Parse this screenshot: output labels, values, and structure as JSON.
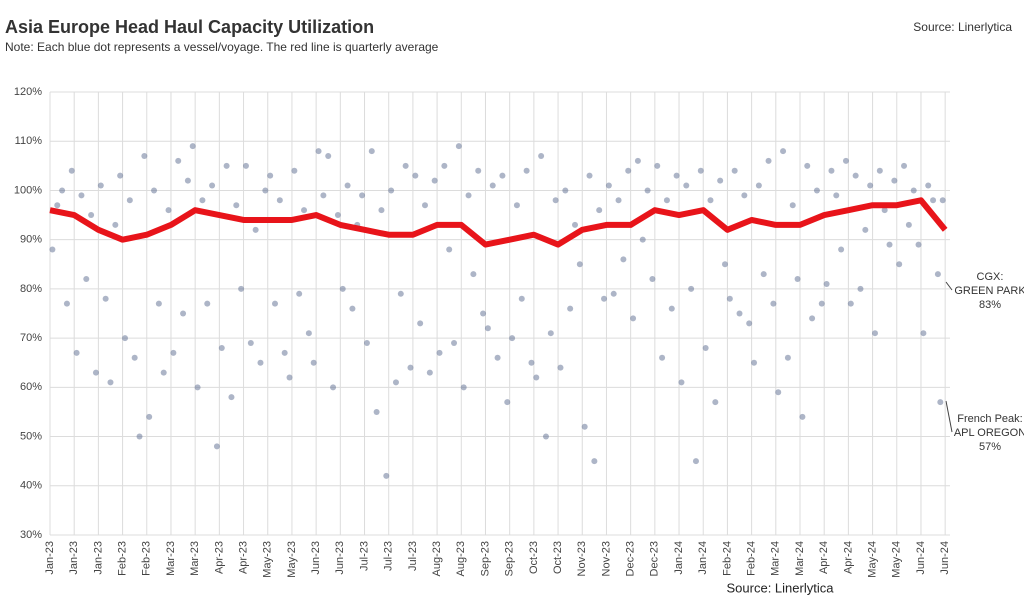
{
  "chart_data": {
    "type": "scatter",
    "title": "Asia Europe Head Haul Capacity Utilization",
    "subtitle": "Note: Each blue dot represents a vessel/voyage. The red line is quarterly average",
    "source_top": "Source: Linerlytica",
    "source_bottom": "Source: Linerlytica",
    "xlim": [
      0,
      37.2
    ],
    "xticks": [
      {
        "value": 0,
        "label": "Jan-23"
      },
      {
        "value": 1,
        "label": "Jan-23"
      },
      {
        "value": 2,
        "label": "Jan-23"
      },
      {
        "value": 3,
        "label": "Feb-23"
      },
      {
        "value": 4,
        "label": "Feb-23"
      },
      {
        "value": 5,
        "label": "Mar-23"
      },
      {
        "value": 6,
        "label": "Mar-23"
      },
      {
        "value": 7,
        "label": "Apr-23"
      },
      {
        "value": 8,
        "label": "Apr-23"
      },
      {
        "value": 9,
        "label": "May-23"
      },
      {
        "value": 10,
        "label": "May-23"
      },
      {
        "value": 11,
        "label": "Jun-23"
      },
      {
        "value": 12,
        "label": "Jun-23"
      },
      {
        "value": 13,
        "label": "Jul-23"
      },
      {
        "value": 14,
        "label": "Jul-23"
      },
      {
        "value": 15,
        "label": "Jul-23"
      },
      {
        "value": 16,
        "label": "Aug-23"
      },
      {
        "value": 17,
        "label": "Aug-23"
      },
      {
        "value": 18,
        "label": "Sep-23"
      },
      {
        "value": 19,
        "label": "Sep-23"
      },
      {
        "value": 20,
        "label": "Oct-23"
      },
      {
        "value": 21,
        "label": "Oct-23"
      },
      {
        "value": 22,
        "label": "Nov-23"
      },
      {
        "value": 23,
        "label": "Nov-23"
      },
      {
        "value": 24,
        "label": "Dec-23"
      },
      {
        "value": 25,
        "label": "Dec-23"
      },
      {
        "value": 26,
        "label": "Jan-24"
      },
      {
        "value": 27,
        "label": "Jan-24"
      },
      {
        "value": 28,
        "label": "Feb-24"
      },
      {
        "value": 29,
        "label": "Feb-24"
      },
      {
        "value": 30,
        "label": "Mar-24"
      },
      {
        "value": 31,
        "label": "Mar-24"
      },
      {
        "value": 32,
        "label": "Apr-24"
      },
      {
        "value": 33,
        "label": "Apr-24"
      },
      {
        "value": 34,
        "label": "May-24"
      },
      {
        "value": 35,
        "label": "May-24"
      },
      {
        "value": 36,
        "label": "Jun-24"
      },
      {
        "value": 37,
        "label": "Jun-24"
      }
    ],
    "ylim": [
      30,
      120
    ],
    "yticks": [
      {
        "value": 30,
        "label": "30%"
      },
      {
        "value": 40,
        "label": "40%"
      },
      {
        "value": 50,
        "label": "50%"
      },
      {
        "value": 60,
        "label": "60%"
      },
      {
        "value": 70,
        "label": "70%"
      },
      {
        "value": 80,
        "label": "80%"
      },
      {
        "value": 90,
        "label": "90%"
      },
      {
        "value": 100,
        "label": "100%"
      },
      {
        "value": 110,
        "label": "110%"
      },
      {
        "value": 120,
        "label": "120%"
      }
    ],
    "grid": true,
    "series": [
      {
        "kind": "points",
        "color": "#5b6b8f",
        "x": [
          0.1,
          0.3,
          0.5,
          0.7,
          0.9,
          1.1,
          1.3,
          1.5,
          1.7,
          1.9,
          2.1,
          2.3,
          2.5,
          2.7,
          2.9,
          3.1,
          3.3,
          3.5,
          3.7,
          3.9,
          4.1,
          4.3,
          4.5,
          4.7,
          4.9,
          5.1,
          5.3,
          5.5,
          5.7,
          5.9,
          6.1,
          6.3,
          6.5,
          6.7,
          6.9,
          7.1,
          7.3,
          7.5,
          7.7,
          7.9,
          8.1,
          8.3,
          8.5,
          8.7,
          8.9,
          9.1,
          9.3,
          9.5,
          9.7,
          9.9,
          10.1,
          10.3,
          10.5,
          10.7,
          10.9,
          11.1,
          11.3,
          11.5,
          11.7,
          11.9,
          12.1,
          12.3,
          12.5,
          12.7,
          12.9,
          13.1,
          13.3,
          13.5,
          13.7,
          13.9,
          14.1,
          14.3,
          14.5,
          14.7,
          14.9,
          15.1,
          15.3,
          15.5,
          15.7,
          15.9,
          16.1,
          16.3,
          16.5,
          16.7,
          16.9,
          17.1,
          17.3,
          17.5,
          17.7,
          17.9,
          18.1,
          18.3,
          18.5,
          18.7,
          18.9,
          19.1,
          19.3,
          19.5,
          19.7,
          19.9,
          20.1,
          20.3,
          20.5,
          20.7,
          20.9,
          21.1,
          21.3,
          21.5,
          21.7,
          21.9,
          22.1,
          22.3,
          22.5,
          22.7,
          22.9,
          23.1,
          23.3,
          23.5,
          23.7,
          23.9,
          24.1,
          24.3,
          24.5,
          24.7,
          24.9,
          25.1,
          25.3,
          25.5,
          25.7,
          25.9,
          26.1,
          26.3,
          26.5,
          26.7,
          26.9,
          27.1,
          27.3,
          27.5,
          27.7,
          27.9,
          28.1,
          28.3,
          28.5,
          28.7,
          28.9,
          29.1,
          29.3,
          29.5,
          29.7,
          29.9,
          30.1,
          30.3,
          30.5,
          30.7,
          30.9,
          31.1,
          31.3,
          31.5,
          31.7,
          31.9,
          32.1,
          32.3,
          32.5,
          32.7,
          32.9,
          33.1,
          33.3,
          33.5,
          33.7,
          33.9,
          34.1,
          34.3,
          34.5,
          34.7,
          34.9,
          35.1,
          35.3,
          35.5,
          35.7,
          35.9,
          36.1,
          36.3,
          36.5,
          36.7,
          36.9,
          36.8
        ],
        "values": [
          88,
          97,
          100,
          77,
          104,
          67,
          99,
          82,
          95,
          63,
          101,
          78,
          61,
          93,
          103,
          70,
          98,
          66,
          50,
          107,
          54,
          100,
          77,
          63,
          96,
          67,
          106,
          75,
          102,
          109,
          60,
          98,
          77,
          101,
          48,
          68,
          105,
          58,
          97,
          80,
          105,
          69,
          92,
          65,
          100,
          103,
          77,
          98,
          67,
          62,
          104,
          79,
          96,
          71,
          65,
          108,
          99,
          107,
          60,
          95,
          80,
          101,
          76,
          93,
          99,
          69,
          108,
          55,
          96,
          42,
          100,
          61,
          79,
          105,
          64,
          103,
          73,
          97,
          63,
          102,
          67,
          105,
          88,
          69,
          109,
          60,
          99,
          83,
          104,
          75,
          72,
          101,
          66,
          103,
          57,
          70,
          97,
          78,
          104,
          65,
          62,
          107,
          50,
          71,
          98,
          64,
          100,
          76,
          93,
          85,
          52,
          103,
          45,
          96,
          78,
          101,
          79,
          98,
          86,
          104,
          74,
          106,
          90,
          100,
          82,
          105,
          66,
          98,
          76,
          103,
          61,
          101,
          80,
          45,
          104,
          68,
          98,
          57,
          102,
          85,
          78,
          104,
          75,
          99,
          73,
          65,
          101,
          83,
          106,
          77,
          59,
          108,
          66,
          97,
          82,
          54,
          105,
          74,
          100,
          77,
          81,
          104,
          99,
          88,
          106,
          77,
          103,
          80,
          92,
          101,
          71,
          104,
          96,
          89,
          102,
          85,
          105,
          93,
          100,
          89,
          71,
          101,
          98,
          83,
          98,
          57
        ]
      },
      {
        "kind": "line",
        "color": "#e8141a",
        "x": [
          0,
          1,
          2,
          3,
          4,
          5,
          6,
          7,
          8,
          9,
          10,
          11,
          12,
          13,
          14,
          15,
          16,
          17,
          18,
          19,
          20,
          21,
          22,
          23,
          24,
          25,
          26,
          27,
          28,
          29,
          30,
          31,
          32,
          33,
          34,
          35,
          36,
          37
        ],
        "values": [
          96,
          95,
          92,
          90,
          91,
          93,
          96,
          95,
          94,
          94,
          94,
          95,
          93,
          92,
          91,
          91,
          93,
          93,
          89,
          90,
          91,
          89,
          92,
          93,
          93,
          96,
          95,
          96,
          92,
          94,
          93,
          93,
          95,
          96,
          97,
          97,
          98,
          92
        ]
      }
    ],
    "annotations": [
      {
        "lines": [
          "CGX:",
          "GREEN PARK",
          "83%"
        ]
      },
      {
        "lines": [
          "French Peak:",
          "APL OREGON",
          "57%"
        ]
      }
    ]
  }
}
